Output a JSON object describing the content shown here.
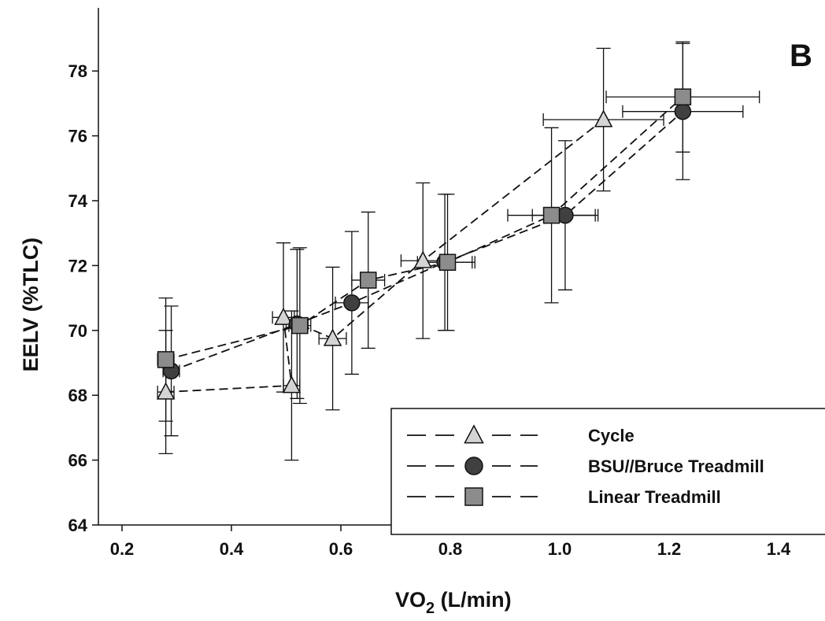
{
  "chart_data": {
    "type": "scatter",
    "panel_label": "B",
    "xlabel_main": "VO",
    "xlabel_sub": "2",
    "xlabel_units": " (L/min)",
    "ylabel": "EELV (%TLC)",
    "xlim": [
      0.1,
      1.47
    ],
    "ylim": [
      64,
      79.8
    ],
    "x_ticks": [
      0.2,
      0.4,
      0.6,
      0.8,
      1.0,
      1.2,
      1.4
    ],
    "x_tick_labels": [
      "0.2",
      "0.4",
      "0.6",
      "0.8",
      "1.0",
      "1.2",
      "1.4"
    ],
    "y_ticks": [
      64,
      66,
      68,
      70,
      72,
      74,
      76,
      78
    ],
    "y_tick_labels": [
      "64",
      "66",
      "68",
      "70",
      "72",
      "74",
      "76",
      "78"
    ],
    "legend_position": "bottom-right",
    "series": [
      {
        "name": "Cycle",
        "marker": "triangle",
        "color": "#d4d4d4",
        "points": [
          {
            "x": 0.28,
            "y": 68.1,
            "xerr": 0.015,
            "yerr": 1.9
          },
          {
            "x": 0.51,
            "y": 68.3,
            "xerr": 0.015,
            "yerr": 2.3
          },
          {
            "x": 0.495,
            "y": 70.4,
            "xerr": 0.02,
            "yerr": 2.3
          },
          {
            "x": 0.585,
            "y": 69.75,
            "xerr": 0.025,
            "yerr": 2.2
          },
          {
            "x": 0.75,
            "y": 72.15,
            "xerr": 0.04,
            "yerr": 2.4
          },
          {
            "x": 1.08,
            "y": 76.5,
            "xerr": 0.11,
            "yerr": 2.2
          }
        ]
      },
      {
        "name": "BSU//Bruce Treadmill",
        "marker": "circle",
        "color": "#404040",
        "points": [
          {
            "x": 0.29,
            "y": 68.75,
            "xerr": 0.015,
            "yerr": 2.0
          },
          {
            "x": 0.52,
            "y": 70.2,
            "xerr": 0.02,
            "yerr": 2.3
          },
          {
            "x": 0.62,
            "y": 70.85,
            "xerr": 0.03,
            "yerr": 2.2
          },
          {
            "x": 0.79,
            "y": 72.1,
            "xerr": 0.05,
            "yerr": 2.1
          },
          {
            "x": 1.01,
            "y": 73.55,
            "xerr": 0.06,
            "yerr": 2.3
          },
          {
            "x": 1.225,
            "y": 76.75,
            "xerr": 0.11,
            "yerr": 2.1
          }
        ]
      },
      {
        "name": "Linear Treadmill",
        "marker": "square",
        "color": "#8c8c8c",
        "points": [
          {
            "x": 0.28,
            "y": 69.1,
            "xerr": 0.015,
            "yerr": 1.9
          },
          {
            "x": 0.525,
            "y": 70.15,
            "xerr": 0.02,
            "yerr": 2.4
          },
          {
            "x": 0.65,
            "y": 71.55,
            "xerr": 0.03,
            "yerr": 2.1
          },
          {
            "x": 0.795,
            "y": 72.1,
            "xerr": 0.05,
            "yerr": 2.1
          },
          {
            "x": 0.985,
            "y": 73.55,
            "xerr": 0.08,
            "yerr": 2.7
          },
          {
            "x": 1.225,
            "y": 77.2,
            "xerr": 0.14,
            "yerr": 1.7
          }
        ]
      }
    ]
  }
}
